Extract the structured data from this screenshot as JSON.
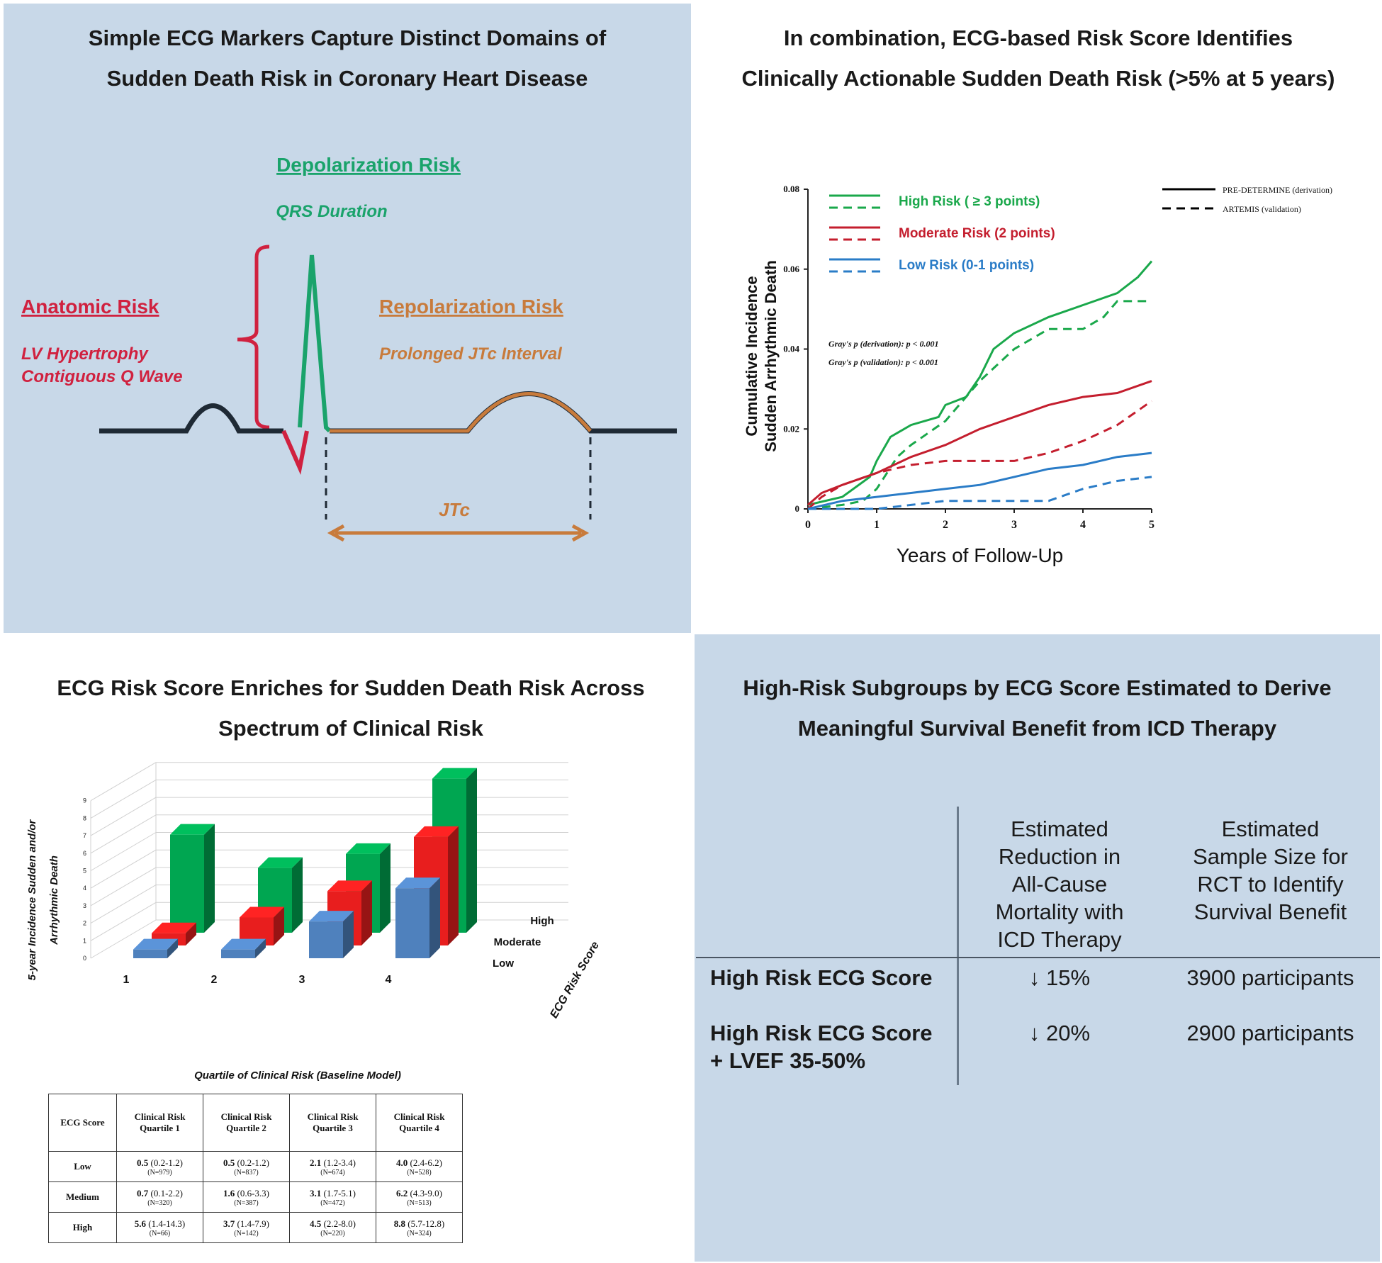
{
  "panel1": {
    "title_line1": "Simple ECG Markers Capture Distinct Domains of",
    "title_line2": "Sudden Death Risk in Coronary Heart Disease",
    "depolarization_heading": "Depolarization Risk",
    "depolarization_marker": "QRS Duration",
    "anatomic_heading": "Anatomic Risk",
    "anatomic_marker_1": "LV Hypertrophy",
    "anatomic_marker_2": "Contiguous Q Wave",
    "repolarization_heading": "Repolarization Risk",
    "repolarization_marker": "Prolonged JTc Interval",
    "jtc_label": "JTc",
    "colors": {
      "background": "#c8d8e8",
      "anatomic": "#d0213f",
      "depolarization": "#1aa36b",
      "repolarization": "#c87b3c",
      "baseline": "#1f2a35"
    }
  },
  "panel2": {
    "title_line1": "In combination, ECG-based Risk Score Identifies",
    "title_line2": "Clinically Actionable  Sudden Death Risk (>5% at 5 years)",
    "stat_line1": "Gray's p (derivation): p < 0.001",
    "stat_line2": "Gray's p (validation): p < 0.001",
    "line_style_legend": [
      "PRE-DETERMINE (derivation)",
      "ARTEMIS (validation)"
    ]
  },
  "panel3": {
    "title_line1": "ECG Risk Score Enriches for Sudden Death Risk Across",
    "title_line2": "Spectrum of Clinical Risk",
    "ylabel_line1": "5-year Incidence Sudden and/or",
    "ylabel_line2": "Arrhythmic Death",
    "depth_axis_title": "ECG Risk Score",
    "xlabel": "Quartile of Clinical Risk (Baseline Model)",
    "table": {
      "header": [
        "ECG Score",
        "Clinical Risk Quartile 1",
        "Clinical Risk Quartile 2",
        "Clinical Risk Quartile 3",
        "Clinical Risk Quartile 4"
      ],
      "rows": [
        {
          "label": "Low",
          "cells": [
            {
              "value": "0.5",
              "ci": "(0.2-1.2)",
              "n": "(N=979)"
            },
            {
              "value": "0.5",
              "ci": "(0.2-1.2)",
              "n": "(N=837)"
            },
            {
              "value": "2.1",
              "ci": "(1.2-3.4)",
              "n": "(N=674)"
            },
            {
              "value": "4.0",
              "ci": "(2.4-6.2)",
              "n": "(N=528)"
            }
          ]
        },
        {
          "label": "Medium",
          "cells": [
            {
              "value": "0.7",
              "ci": "(0.1-2.2)",
              "n": "(N=320)"
            },
            {
              "value": "1.6",
              "ci": "(0.6-3.3)",
              "n": "(N=387)"
            },
            {
              "value": "3.1",
              "ci": "(1.7-5.1)",
              "n": "(N=472)"
            },
            {
              "value": "6.2",
              "ci": "(4.3-9.0)",
              "n": "(N=513)"
            }
          ]
        },
        {
          "label": "High",
          "cells": [
            {
              "value": "5.6",
              "ci": "(1.4-14.3)",
              "n": "(N=66)"
            },
            {
              "value": "3.7",
              "ci": "(1.4-7.9)",
              "n": "(N=142)"
            },
            {
              "value": "4.5",
              "ci": "(2.2-8.0)",
              "n": "(N=220)"
            },
            {
              "value": "8.8",
              "ci": "(5.7-12.8)",
              "n": "(N=324)"
            }
          ]
        }
      ]
    }
  },
  "panel4": {
    "title_line1": "High-Risk Subgroups by ECG Score Estimated to Derive",
    "title_line2": "Meaningful  Survival Benefit from ICD Therapy",
    "col1_header": [
      "Estimated",
      "Reduction in",
      "All-Cause",
      "Mortality with",
      "ICD Therapy"
    ],
    "col2_header": [
      "Estimated",
      "Sample Size for",
      "RCT to Identify",
      "Survival Benefit"
    ],
    "rows": [
      {
        "label_line1": "High Risk ECG Score",
        "label_line2": "",
        "reduction": "↓ 15%",
        "sample": "3900 participants"
      },
      {
        "label_line1": "High Risk ECG Score",
        "label_line2": "+ LVEF 35-50%",
        "reduction": "↓ 20%",
        "sample": "2900 participants"
      }
    ]
  },
  "chart_data": [
    {
      "type": "line",
      "xlabel": "Years of Follow-Up",
      "ylabel": "Cumulative Incidence Sudden Arrhythmic Death",
      "xlim": [
        0,
        5
      ],
      "ylim": [
        0,
        0.08
      ],
      "xticks": [
        "0",
        "1",
        "2",
        "3",
        "4",
        "5"
      ],
      "yticks": [
        "0",
        "0.02",
        "0.04",
        "0.06",
        "0.08"
      ],
      "legend_position": "top-left",
      "series": [
        {
          "name": "High Risk ( ≥ 3 points)",
          "style": "solid",
          "color": "#1aa84b",
          "x": [
            0,
            0.5,
            0.9,
            1.0,
            1.2,
            1.5,
            1.9,
            2.0,
            2.3,
            2.5,
            2.7,
            3.0,
            3.5,
            4.0,
            4.5,
            4.8,
            5.0
          ],
          "y": [
            0.001,
            0.003,
            0.008,
            0.012,
            0.018,
            0.021,
            0.023,
            0.026,
            0.028,
            0.033,
            0.04,
            0.044,
            0.048,
            0.051,
            0.054,
            0.058,
            0.062
          ]
        },
        {
          "name": "",
          "style": "dashed",
          "color": "#1aa84b",
          "x": [
            0,
            0.5,
            0.8,
            1.0,
            1.3,
            1.5,
            2.0,
            2.3,
            2.5,
            3.0,
            3.5,
            4.0,
            4.3,
            4.5,
            5.0
          ],
          "y": [
            0.0,
            0.001,
            0.002,
            0.005,
            0.013,
            0.016,
            0.022,
            0.028,
            0.032,
            0.04,
            0.045,
            0.045,
            0.048,
            0.052,
            0.052
          ]
        },
        {
          "name": "Moderate Risk (2 points)",
          "style": "solid",
          "color": "#c41e2e",
          "x": [
            0,
            0.2,
            0.5,
            1.0,
            1.5,
            2.0,
            2.5,
            3.0,
            3.5,
            4.0,
            4.5,
            5.0
          ],
          "y": [
            0.001,
            0.004,
            0.006,
            0.009,
            0.013,
            0.016,
            0.02,
            0.023,
            0.026,
            0.028,
            0.029,
            0.032
          ]
        },
        {
          "name": "",
          "style": "dashed",
          "color": "#c41e2e",
          "x": [
            0,
            0.2,
            0.5,
            1.0,
            1.5,
            2.0,
            2.5,
            3.0,
            3.5,
            4.0,
            4.5,
            5.0
          ],
          "y": [
            0.0,
            0.003,
            0.006,
            0.009,
            0.011,
            0.012,
            0.012,
            0.012,
            0.014,
            0.017,
            0.021,
            0.027
          ]
        },
        {
          "name": "Low Risk (0-1 points)",
          "style": "solid",
          "color": "#2a7cc7",
          "x": [
            0,
            0.5,
            1.0,
            1.5,
            2.0,
            2.5,
            3.0,
            3.5,
            4.0,
            4.5,
            5.0
          ],
          "y": [
            0.0,
            0.002,
            0.003,
            0.004,
            0.005,
            0.006,
            0.008,
            0.01,
            0.011,
            0.013,
            0.014
          ]
        },
        {
          "name": "",
          "style": "dashed",
          "color": "#2a7cc7",
          "x": [
            0,
            0.5,
            1.0,
            1.5,
            2.0,
            2.5,
            3.0,
            3.5,
            4.0,
            4.5,
            5.0
          ],
          "y": [
            0.0,
            0.0,
            0.0,
            0.001,
            0.002,
            0.002,
            0.002,
            0.002,
            0.005,
            0.007,
            0.008
          ]
        }
      ]
    },
    {
      "type": "bar",
      "subtype": "3d-grouped",
      "xlabel": "Quartile of Clinical Risk (Baseline Model)",
      "categories": [
        "1",
        "2",
        "3",
        "4"
      ],
      "yticks": [
        "0",
        "1",
        "2",
        "3",
        "4",
        "5",
        "6",
        "7",
        "8",
        "9"
      ],
      "ylim": [
        0,
        9
      ],
      "series": [
        {
          "name": "Low",
          "color": "#4f81bd",
          "values": [
            0.5,
            0.5,
            2.1,
            4.0
          ]
        },
        {
          "name": "Moderate",
          "color": "#e81e1e",
          "values": [
            0.7,
            1.6,
            3.1,
            6.2
          ]
        },
        {
          "name": "High",
          "color": "#00a651",
          "values": [
            5.6,
            3.7,
            4.5,
            8.8
          ]
        }
      ]
    }
  ]
}
